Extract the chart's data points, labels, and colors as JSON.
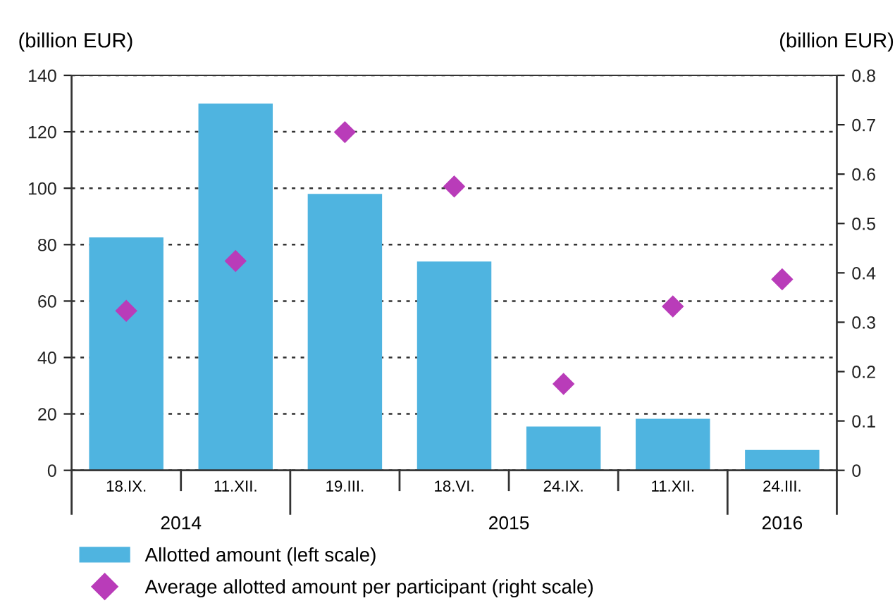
{
  "chart_data": {
    "type": "bar",
    "ylabel": "(billion EUR)",
    "y2label": "(billion EUR)",
    "categories": [
      "18.IX.",
      "11.XII.",
      "19.III.",
      "18.VI.",
      "24.IX.",
      "11.XII.",
      "24.III."
    ],
    "series": [
      {
        "name": "Allotted amount (left scale)",
        "color": "#4fb4e0",
        "values": [
          82.6,
          130,
          98,
          74,
          15.5,
          18.3,
          7.2
        ]
      },
      {
        "name": "Average allotted amount per participant (right scale)",
        "type": "scatter",
        "axis": "y2",
        "color": "#b93cb9",
        "marker": "diamond",
        "values": [
          0.323,
          0.424,
          0.685,
          0.575,
          0.175,
          0.332,
          0.387
        ]
      }
    ],
    "ylim": [
      0,
      140
    ],
    "yticks": [
      0,
      20,
      40,
      60,
      80,
      100,
      120,
      140
    ],
    "y2lim": [
      0,
      0.8
    ],
    "y2ticks": [
      0,
      0.1,
      0.2,
      0.3,
      0.4,
      0.5,
      0.6,
      0.7,
      0.8
    ],
    "grid": "y",
    "legend": "bottom",
    "annotations": [
      "2014",
      "2015",
      "2016"
    ]
  }
}
